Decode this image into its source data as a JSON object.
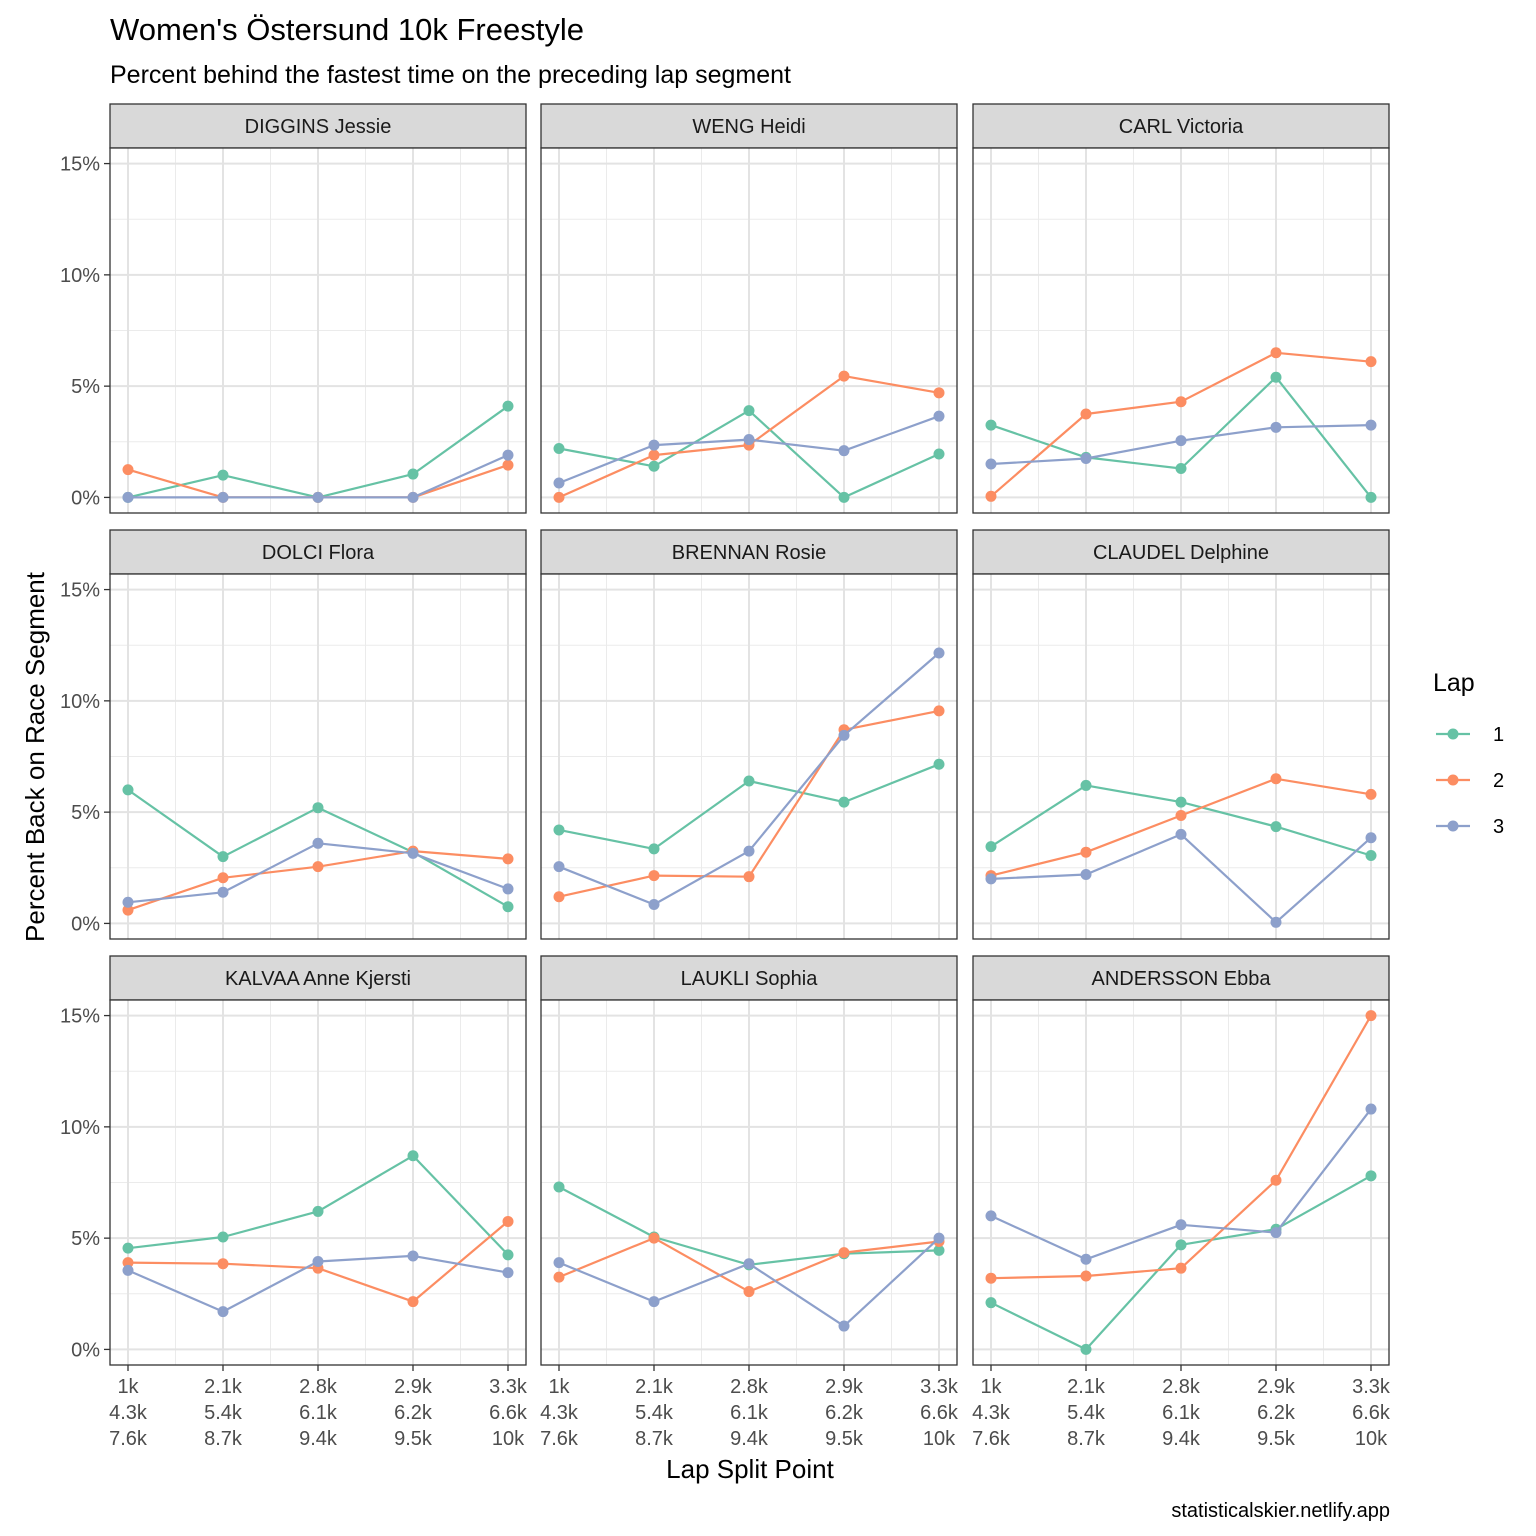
{
  "chart_data": {
    "type": "line",
    "title": "Women's Östersund 10k Freestyle",
    "subtitle": "Percent behind the fastest time on the preceding lap segment",
    "xlabel": "Lap Split Point",
    "ylabel": "Percent Back on Race Segment",
    "caption": "statisticalskier.netlify.app",
    "x_categories": [
      [
        "1k",
        "4.3k",
        "7.6k"
      ],
      [
        "2.1k",
        "5.4k",
        "8.7k"
      ],
      [
        "2.8k",
        "6.1k",
        "9.4k"
      ],
      [
        "2.9k",
        "6.2k",
        "9.5k"
      ],
      [
        "3.3k",
        "6.6k",
        "10k"
      ]
    ],
    "y_ticks": [
      0,
      5,
      10,
      15
    ],
    "y_tick_labels": [
      "0%",
      "5%",
      "10%",
      "15%"
    ],
    "ylim": [
      -0.7,
      15.7
    ],
    "grid": true,
    "legend": {
      "title": "Lap",
      "position": "right",
      "items": [
        {
          "label": "1",
          "color": "#66c2a5"
        },
        {
          "label": "2",
          "color": "#fc8d62"
        },
        {
          "label": "3",
          "color": "#8da0cb"
        }
      ]
    },
    "panels": [
      {
        "name": "DIGGINS Jessie",
        "series": [
          {
            "lap": "1",
            "values": [
              0.0,
              1.0,
              0.0,
              1.05,
              4.1
            ]
          },
          {
            "lap": "2",
            "values": [
              1.25,
              0.0,
              0.0,
              0.0,
              1.45
            ]
          },
          {
            "lap": "3",
            "values": [
              0.0,
              0.0,
              0.0,
              0.0,
              1.9
            ]
          }
        ]
      },
      {
        "name": "WENG Heidi",
        "series": [
          {
            "lap": "1",
            "values": [
              2.2,
              1.4,
              3.9,
              0.0,
              1.95
            ]
          },
          {
            "lap": "2",
            "values": [
              0.0,
              1.9,
              2.35,
              5.45,
              4.7
            ]
          },
          {
            "lap": "3",
            "values": [
              0.65,
              2.35,
              2.6,
              2.1,
              3.65
            ]
          }
        ]
      },
      {
        "name": "CARL Victoria",
        "series": [
          {
            "lap": "1",
            "values": [
              3.25,
              1.8,
              1.3,
              5.4,
              0.0
            ]
          },
          {
            "lap": "2",
            "values": [
              0.05,
              3.75,
              4.3,
              6.5,
              6.1
            ]
          },
          {
            "lap": "3",
            "values": [
              1.5,
              1.75,
              2.55,
              3.15,
              3.25
            ]
          }
        ]
      },
      {
        "name": "DOLCI Flora",
        "series": [
          {
            "lap": "1",
            "values": [
              6.0,
              3.0,
              5.2,
              3.2,
              0.75
            ]
          },
          {
            "lap": "2",
            "values": [
              0.6,
              2.05,
              2.55,
              3.25,
              2.9
            ]
          },
          {
            "lap": "3",
            "values": [
              0.95,
              1.4,
              3.6,
              3.15,
              1.55
            ]
          }
        ]
      },
      {
        "name": "BRENNAN Rosie",
        "series": [
          {
            "lap": "1",
            "values": [
              4.2,
              3.35,
              6.4,
              5.45,
              7.15
            ]
          },
          {
            "lap": "2",
            "values": [
              1.2,
              2.15,
              2.1,
              8.7,
              9.55
            ]
          },
          {
            "lap": "3",
            "values": [
              2.55,
              0.85,
              3.25,
              8.45,
              12.15
            ]
          }
        ]
      },
      {
        "name": "CLAUDEL Delphine",
        "series": [
          {
            "lap": "1",
            "values": [
              3.45,
              6.2,
              5.45,
              4.35,
              3.05
            ]
          },
          {
            "lap": "2",
            "values": [
              2.15,
              3.2,
              4.85,
              6.5,
              5.8
            ]
          },
          {
            "lap": "3",
            "values": [
              2.0,
              2.2,
              4.0,
              0.05,
              3.85
            ]
          }
        ]
      },
      {
        "name": "KALVAA Anne Kjersti",
        "series": [
          {
            "lap": "1",
            "values": [
              4.55,
              5.05,
              6.2,
              8.7,
              4.25
            ]
          },
          {
            "lap": "2",
            "values": [
              3.9,
              3.85,
              3.65,
              2.15,
              5.75
            ]
          },
          {
            "lap": "3",
            "values": [
              3.55,
              1.7,
              3.95,
              4.2,
              3.45
            ]
          }
        ]
      },
      {
        "name": "LAUKLI Sophia",
        "series": [
          {
            "lap": "1",
            "values": [
              7.3,
              5.05,
              3.8,
              4.3,
              4.45
            ]
          },
          {
            "lap": "2",
            "values": [
              3.25,
              5.0,
              2.6,
              4.35,
              4.85
            ]
          },
          {
            "lap": "3",
            "values": [
              3.9,
              2.15,
              3.85,
              1.05,
              5.0
            ]
          }
        ]
      },
      {
        "name": "ANDERSSON Ebba",
        "series": [
          {
            "lap": "1",
            "values": [
              2.1,
              0.0,
              4.7,
              5.4,
              7.8
            ]
          },
          {
            "lap": "2",
            "values": [
              3.2,
              3.3,
              3.65,
              7.6,
              15.0
            ]
          },
          {
            "lap": "3",
            "values": [
              6.0,
              4.05,
              5.6,
              5.25,
              10.8
            ]
          }
        ]
      }
    ]
  }
}
